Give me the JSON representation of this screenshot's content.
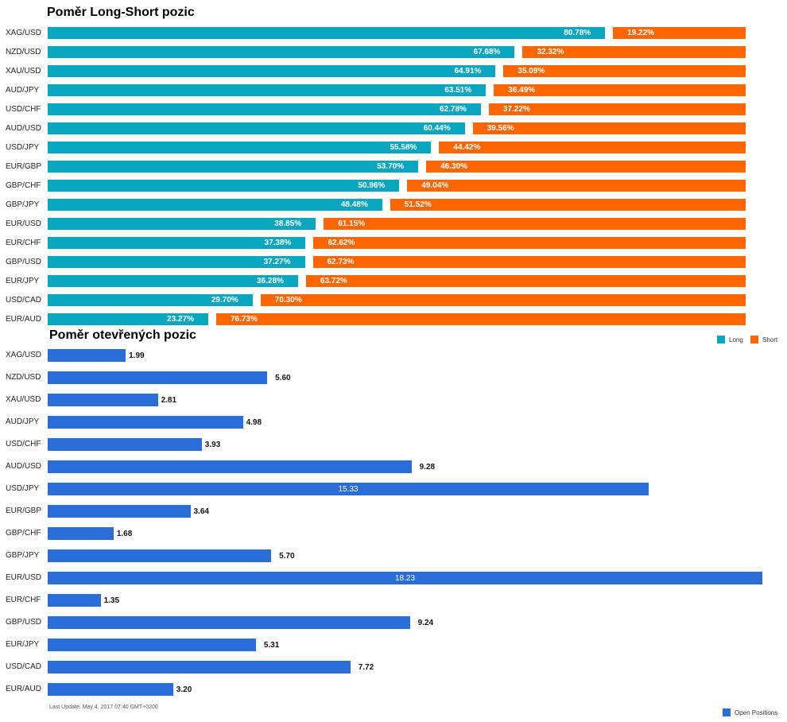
{
  "chart_data": [
    {
      "type": "bar",
      "orientation": "horizontal",
      "stacked": true,
      "title": "Poměr Long-Short pozic",
      "categories": [
        "XAG/USD",
        "NZD/USD",
        "XAU/USD",
        "AUD/JPY",
        "USD/CHF",
        "AUD/USD",
        "USD/JPY",
        "EUR/GBP",
        "GBP/CHF",
        "GBP/JPY",
        "EUR/USD",
        "EUR/CHF",
        "GBP/USD",
        "EUR/JPY",
        "USD/CAD",
        "EUR/AUD"
      ],
      "series": [
        {
          "name": "Long",
          "color": "#0aa5be",
          "values": [
            80.78,
            67.68,
            64.91,
            63.51,
            62.78,
            60.44,
            55.58,
            53.7,
            50.96,
            48.48,
            38.85,
            37.38,
            37.27,
            36.28,
            29.7,
            23.27
          ]
        },
        {
          "name": "Short",
          "color": "#ff6600",
          "values": [
            19.22,
            32.32,
            35.09,
            36.49,
            37.22,
            39.56,
            44.42,
            46.3,
            49.04,
            51.52,
            61.15,
            62.62,
            62.73,
            63.72,
            70.3,
            76.73
          ]
        }
      ],
      "value_suffix": "%",
      "legend_position": "right",
      "xlim": [
        0,
        100
      ],
      "grid": false
    },
    {
      "type": "bar",
      "orientation": "horizontal",
      "title": "Poměr otevřených pozic",
      "categories": [
        "XAG/USD",
        "NZD/USD",
        "XAU/USD",
        "AUD/JPY",
        "USD/CHF",
        "AUD/USD",
        "USD/JPY",
        "EUR/GBP",
        "GBP/CHF",
        "GBP/JPY",
        "EUR/USD",
        "EUR/CHF",
        "GBP/USD",
        "EUR/JPY",
        "USD/CAD",
        "EUR/AUD"
      ],
      "series": [
        {
          "name": "Open Positions",
          "color": "#2a6dd9",
          "values": [
            1.99,
            5.6,
            2.81,
            4.98,
            3.93,
            9.28,
            15.33,
            3.64,
            1.68,
            5.7,
            18.23,
            1.35,
            9.24,
            5.31,
            7.72,
            3.2
          ]
        }
      ],
      "legend_position": "bottom-right",
      "xlim": [
        0,
        18.23
      ],
      "grid": false
    }
  ],
  "footer": {
    "last_update": "Last Update: May 4, 2017 07:40 GMT+0200"
  }
}
